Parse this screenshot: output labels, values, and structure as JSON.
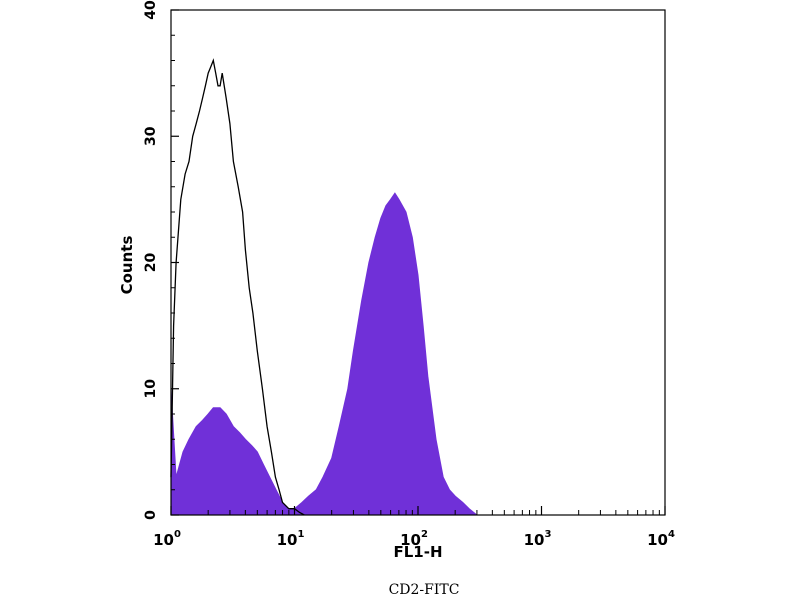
{
  "chart_data": {
    "type": "area",
    "title": "",
    "caption": "CD2-FITC",
    "xlabel": "FL1-H",
    "ylabel": "Counts",
    "x_scale": "log",
    "xlim": [
      1,
      10000
    ],
    "ylim": [
      0,
      40
    ],
    "x_ticks": [
      {
        "base": "10",
        "exp": "0",
        "value": 1
      },
      {
        "base": "10",
        "exp": "1",
        "value": 10
      },
      {
        "base": "10",
        "exp": "2",
        "value": 100
      },
      {
        "base": "10",
        "exp": "3",
        "value": 1000
      },
      {
        "base": "10",
        "exp": "4",
        "value": 10000
      }
    ],
    "y_ticks": [
      "0",
      "10",
      "20",
      "30",
      "40"
    ],
    "grid": false,
    "legend": "none",
    "series": [
      {
        "style": "filled",
        "color": "#7030d8",
        "x": [
          1.0,
          1.1,
          1.25,
          1.4,
          1.6,
          1.8,
          2.0,
          2.2,
          2.5,
          2.8,
          3.2,
          3.6,
          4.0,
          4.5,
          5.0,
          5.6,
          6.3,
          7.1,
          8.0,
          9.0,
          10,
          11.5,
          13,
          15,
          17,
          20,
          23,
          27,
          30,
          35,
          40,
          45,
          50,
          55,
          60,
          65,
          70,
          80,
          90,
          100,
          110,
          120,
          140,
          160,
          180,
          200,
          230,
          260,
          300
        ],
        "y": [
          10,
          3,
          5,
          6,
          7,
          7.5,
          8,
          8.5,
          8.5,
          8,
          7,
          6.5,
          6,
          5.5,
          5,
          4,
          3,
          2,
          1,
          0.5,
          0.5,
          1,
          1.5,
          2,
          3,
          4.5,
          7,
          10,
          13,
          17,
          20,
          22,
          23.5,
          24.5,
          25,
          25.5,
          25,
          24,
          22,
          19,
          15,
          11,
          6,
          3,
          2,
          1.5,
          1,
          0.5,
          0
        ]
      },
      {
        "style": "outline",
        "color": "#000000",
        "x": [
          1.0,
          1.05,
          1.1,
          1.2,
          1.3,
          1.4,
          1.5,
          1.6,
          1.7,
          1.8,
          1.9,
          2.0,
          2.1,
          2.2,
          2.3,
          2.4,
          2.5,
          2.6,
          2.8,
          3.0,
          3.2,
          3.5,
          3.8,
          4.0,
          4.3,
          4.6,
          5.0,
          5.5,
          6.0,
          6.5,
          7.0,
          7.5,
          8.0,
          9.0,
          10,
          11,
          12
        ],
        "y": [
          3,
          15,
          20,
          25,
          27,
          28,
          30,
          31,
          32,
          33,
          34,
          35,
          35.5,
          36,
          35,
          34,
          34,
          35,
          33,
          31,
          28,
          26,
          24,
          21,
          18,
          16,
          13,
          10,
          7,
          5,
          3,
          2,
          1,
          0.5,
          0.5,
          0.2,
          0
        ]
      }
    ]
  }
}
